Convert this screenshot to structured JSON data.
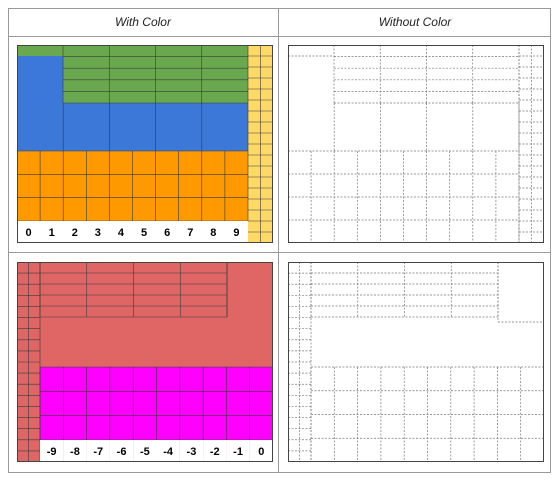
{
  "headers": {
    "with_color": "With Color",
    "without_color": "Without Color"
  },
  "colors": {
    "green": "#6aa84f",
    "blue": "#3c78d8",
    "orange": "#ff9900",
    "yellow": "#ffd966",
    "red": "#e06666",
    "magenta": "#ff00ff",
    "grid_color": "#3a3a3a",
    "dashed_grid_color": "#777777"
  },
  "panel1": {
    "labels": [
      "0",
      "1",
      "2",
      "3",
      "4",
      "5",
      "6",
      "7",
      "8",
      "9"
    ]
  },
  "panel2": {
    "labels": [
      "-9",
      "-8",
      "-7",
      "-6",
      "-5",
      "-4",
      "-3",
      "-2",
      "-1",
      "0"
    ]
  }
}
